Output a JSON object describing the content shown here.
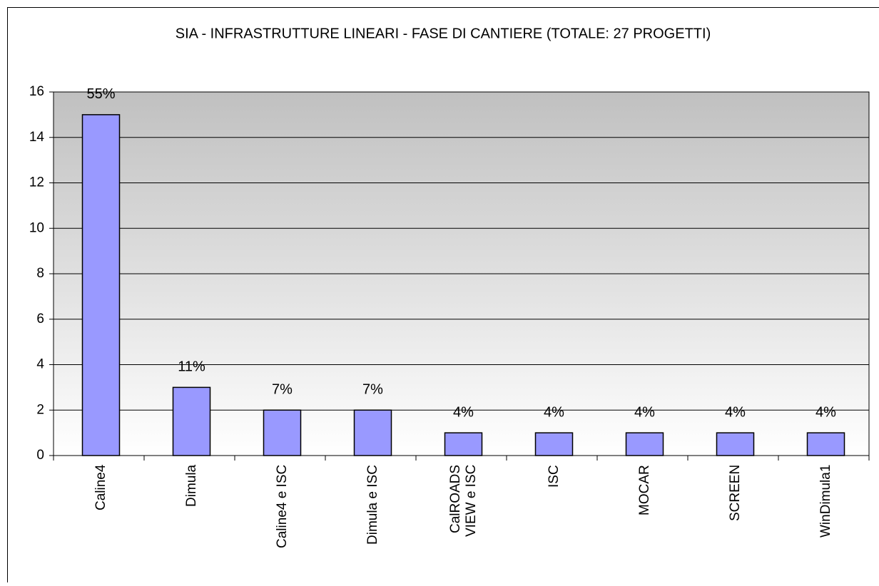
{
  "chart_data": {
    "type": "bar",
    "title": "SIA - INFRASTRUTTURE LINEARI - FASE DI CANTIERE (TOTALE: 27 PROGETTI)",
    "categories": [
      "Caline4",
      "Dimula",
      "Caline4 e ISC",
      "Dimula e ISC",
      "CalROADS\nVIEW e ISC",
      "ISC",
      "MOCAR",
      "SCREEN",
      "WinDimula1"
    ],
    "values": [
      15,
      3,
      2,
      2,
      1,
      1,
      1,
      1,
      1
    ],
    "value_labels": [
      "55%",
      "11%",
      "7%",
      "7%",
      "4%",
      "4%",
      "4%",
      "4%",
      "4%"
    ],
    "color": "#9999ff",
    "ylim": [
      0,
      16
    ],
    "yticks": [
      0,
      2,
      4,
      6,
      8,
      10,
      12,
      14,
      16
    ],
    "grid": true
  }
}
